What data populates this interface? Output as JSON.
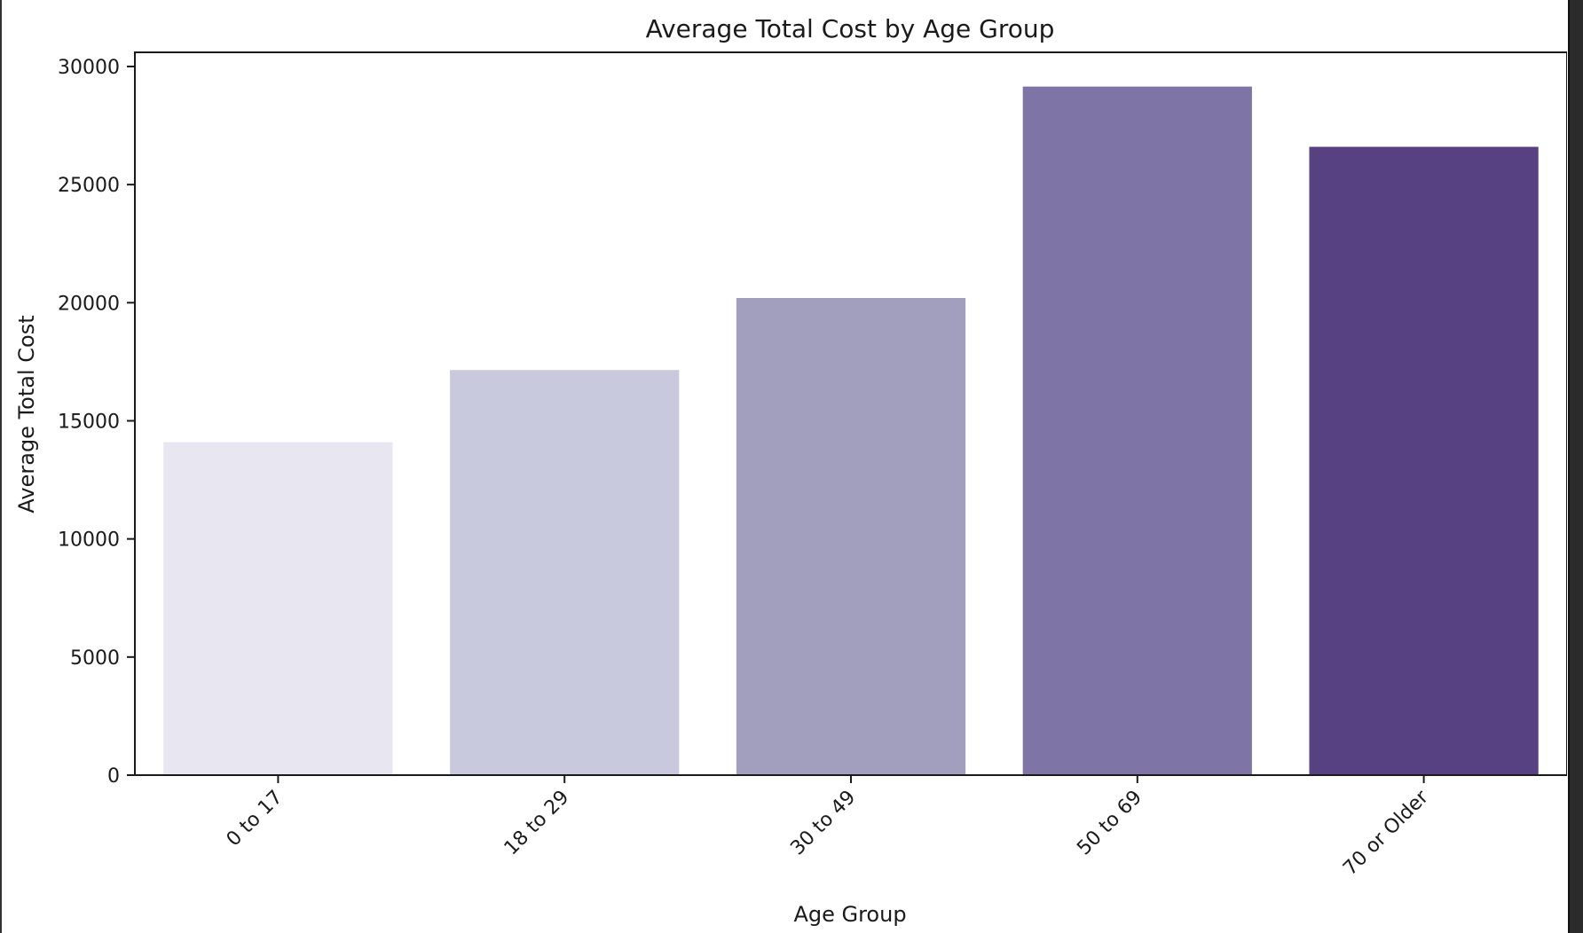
{
  "chart_data": {
    "type": "bar",
    "title": "Average Total Cost by Age Group",
    "xlabel": "Age Group",
    "ylabel": "Average Total Cost",
    "categories": [
      "0 to 17",
      "18 to 29",
      "30 to 49",
      "50 to 69",
      "70 or Older"
    ],
    "values": [
      14100,
      17150,
      20200,
      29150,
      26600
    ],
    "ylim": [
      0,
      30600
    ],
    "yticks": [
      0,
      5000,
      10000,
      15000,
      20000,
      25000,
      30000
    ],
    "ytick_labels": [
      "0",
      "5000",
      "10000",
      "15000",
      "20000",
      "25000",
      "30000"
    ],
    "colors": [
      "#e8e6f0",
      "#c8c9dd",
      "#a29fbe",
      "#7e75a6",
      "#584183"
    ],
    "grid": false,
    "legend": "none"
  }
}
